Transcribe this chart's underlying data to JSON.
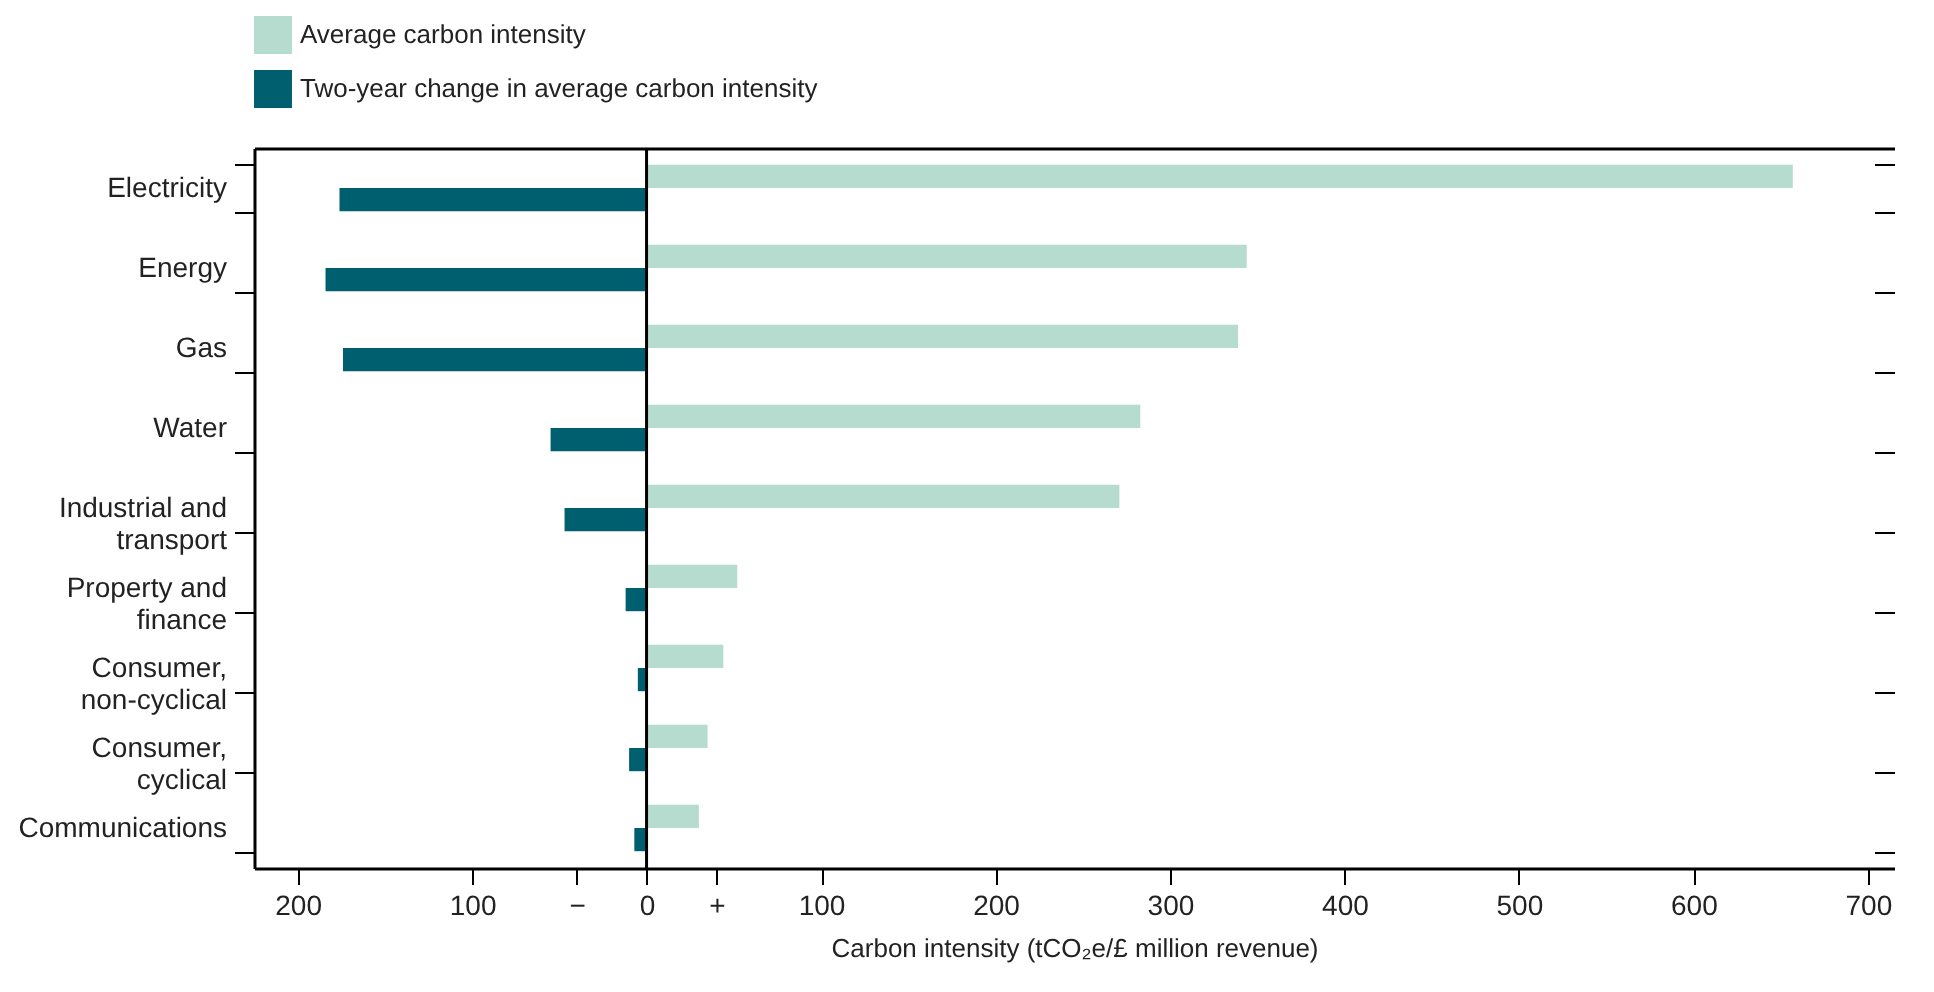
{
  "chart_data": {
    "type": "bar",
    "orientation": "horizontal",
    "xlabel": "Carbon intensity (tCO₂e/£ million revenue)",
    "categories": [
      "Electricity",
      "Energy",
      "Gas",
      "Water",
      "Industrial and transport",
      "Property and finance",
      "Consumer, non-cyclical",
      "Consumer, cyclical",
      "Communications"
    ],
    "series": [
      {
        "name": "Average carbon intensity",
        "color": "#b5dccf",
        "values": [
          657,
          344,
          339,
          283,
          271,
          52,
          44,
          35,
          30
        ]
      },
      {
        "name": "Two-year change in average carbon intensity",
        "color": "#005f6e",
        "values": [
          -176,
          -184,
          -174,
          -55,
          -47,
          -12,
          -5,
          -10,
          -7
        ]
      }
    ],
    "xlim": [
      -225,
      715
    ],
    "xticks": [
      {
        "value": -200,
        "label": "200"
      },
      {
        "value": -100,
        "label": "100"
      },
      {
        "value": -40,
        "label": "−"
      },
      0,
      {
        "value": 40,
        "label": "+"
      },
      100,
      200,
      300,
      400,
      500,
      600,
      700
    ],
    "ref_lines": [
      {
        "axis": "x",
        "value": 0,
        "color": "#000000"
      }
    ],
    "grid": false,
    "legend": "top left"
  }
}
